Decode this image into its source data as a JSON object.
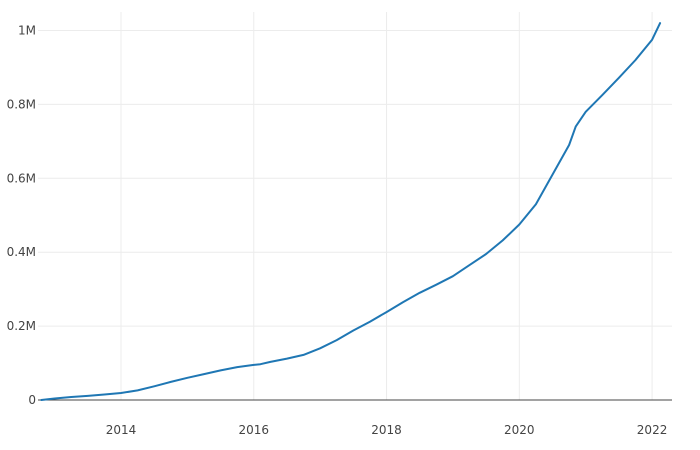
{
  "chart_data": {
    "type": "line",
    "title": "",
    "xlabel": "",
    "ylabel": "",
    "grid": true,
    "legend": "none",
    "xlim": [
      2012.75,
      2022.3
    ],
    "ylim": [
      0,
      1050000
    ],
    "x_ticks": [
      {
        "value": 2014,
        "label": "2014"
      },
      {
        "value": 2016,
        "label": "2016"
      },
      {
        "value": 2018,
        "label": "2018"
      },
      {
        "value": 2020,
        "label": "2020"
      },
      {
        "value": 2022,
        "label": "2022"
      }
    ],
    "y_ticks": [
      {
        "value": 0,
        "label": "0"
      },
      {
        "value": 200000,
        "label": "0.2M"
      },
      {
        "value": 400000,
        "label": "0.4M"
      },
      {
        "value": 600000,
        "label": "0.6M"
      },
      {
        "value": 800000,
        "label": "0.8M"
      },
      {
        "value": 1000000,
        "label": "1M"
      }
    ],
    "series": [
      {
        "color": "#1f77b4",
        "x": [
          2012.8,
          2013.0,
          2013.25,
          2013.5,
          2013.75,
          2014.0,
          2014.25,
          2014.5,
          2014.75,
          2015.0,
          2015.25,
          2015.5,
          2015.75,
          2016.0,
          2016.1,
          2016.25,
          2016.5,
          2016.75,
          2017.0,
          2017.25,
          2017.5,
          2017.75,
          2018.0,
          2018.25,
          2018.5,
          2018.75,
          2019.0,
          2019.25,
          2019.5,
          2019.75,
          2020.0,
          2020.25,
          2020.5,
          2020.75,
          2020.85,
          2021.0,
          2021.25,
          2021.5,
          2021.75,
          2022.0,
          2022.12
        ],
        "y": [
          0,
          4000,
          8000,
          11000,
          15000,
          19000,
          26000,
          37000,
          49000,
          60000,
          70000,
          80000,
          89000,
          95000,
          97000,
          103000,
          112000,
          122000,
          140000,
          162000,
          188000,
          212000,
          238000,
          265000,
          290000,
          312000,
          335000,
          365000,
          395000,
          432000,
          475000,
          530000,
          610000,
          690000,
          740000,
          780000,
          825000,
          872000,
          920000,
          975000,
          1020000
        ]
      }
    ]
  }
}
